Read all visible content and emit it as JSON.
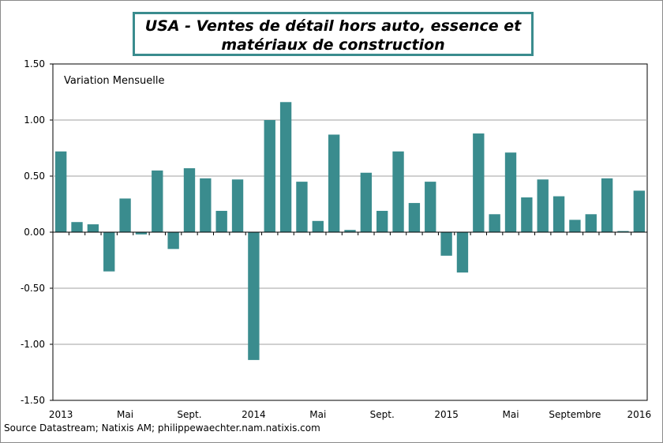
{
  "chart_data": {
    "type": "bar",
    "title": "USA - Ventes de détail hors auto, essence et matériaux de construction",
    "annotation": "Variation Mensuelle",
    "source": "Source Datastream; Natixis AM; philippewaechter.nam.natixis.com",
    "ylim": [
      -1.5,
      1.5
    ],
    "yticks": [
      "1.50",
      "1.00",
      "0.50",
      "0.00",
      "-0.50",
      "-1.00",
      "-1.50"
    ],
    "xtick_labels": [
      {
        "index": 0,
        "label": "2013"
      },
      {
        "index": 4,
        "label": "Mai"
      },
      {
        "index": 8,
        "label": "Sept."
      },
      {
        "index": 12,
        "label": "2014"
      },
      {
        "index": 16,
        "label": "Mai"
      },
      {
        "index": 20,
        "label": "Sept."
      },
      {
        "index": 24,
        "label": "2015"
      },
      {
        "index": 28,
        "label": "Mai"
      },
      {
        "index": 32,
        "label": "Septembre"
      },
      {
        "index": 36,
        "label": "2016"
      }
    ],
    "grid": true,
    "bar_color": "#3a8c8e",
    "values": [
      0.72,
      0.09,
      0.07,
      -0.35,
      0.3,
      -0.02,
      0.55,
      -0.15,
      0.57,
      0.48,
      0.19,
      0.47,
      -1.14,
      1.0,
      1.16,
      0.45,
      0.1,
      0.87,
      0.02,
      0.53,
      0.19,
      0.72,
      0.26,
      0.45,
      -0.21,
      -0.36,
      0.88,
      0.16,
      0.71,
      0.31,
      0.47,
      0.32,
      0.11,
      0.16,
      0.48,
      0.01,
      0.37
    ]
  }
}
